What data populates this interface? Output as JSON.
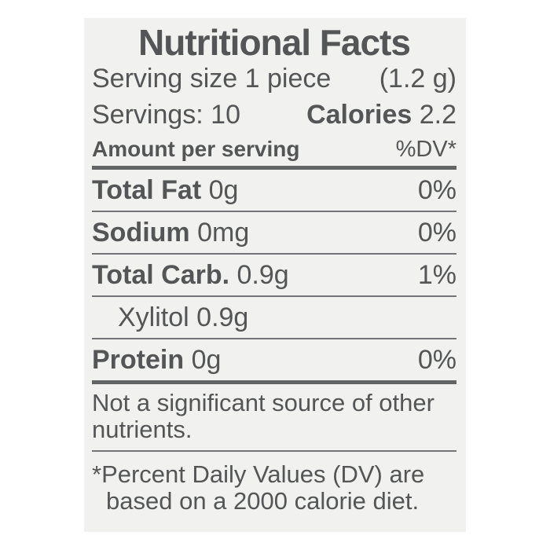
{
  "colors": {
    "page_bg": "#ffffff",
    "label_bg": "#f1f1ef",
    "text": "#545557",
    "rule_thick": "#636466",
    "rule_thin": "#737477"
  },
  "label": {
    "title": "Nutritional Facts",
    "serving_size_label": "Serving size 1 piece",
    "serving_size_weight": "(1.2 g)",
    "servings_label": "Servings: 10",
    "calories_label": "Calories",
    "calories_value": "2.2",
    "amount_header": "Amount per serving",
    "dv_header": "%DV*",
    "rows": [
      {
        "name": "Total Fat",
        "amount": "0g",
        "dv": "0%"
      },
      {
        "name": "Sodium",
        "amount": "0mg",
        "dv": "0%"
      },
      {
        "name": "Total Carb.",
        "amount": "0.9g",
        "dv": "1%"
      },
      {
        "name": "Xylitol",
        "amount": "0.9g",
        "dv": ""
      },
      {
        "name": "Protein",
        "amount": "0g",
        "dv": "0%"
      }
    ],
    "note_lines": [
      "Not a significant source of other",
      "nutrients."
    ],
    "footnote_lines": [
      "*Percent Daily Values (DV) are",
      "based on a 2000 calorie diet."
    ]
  }
}
